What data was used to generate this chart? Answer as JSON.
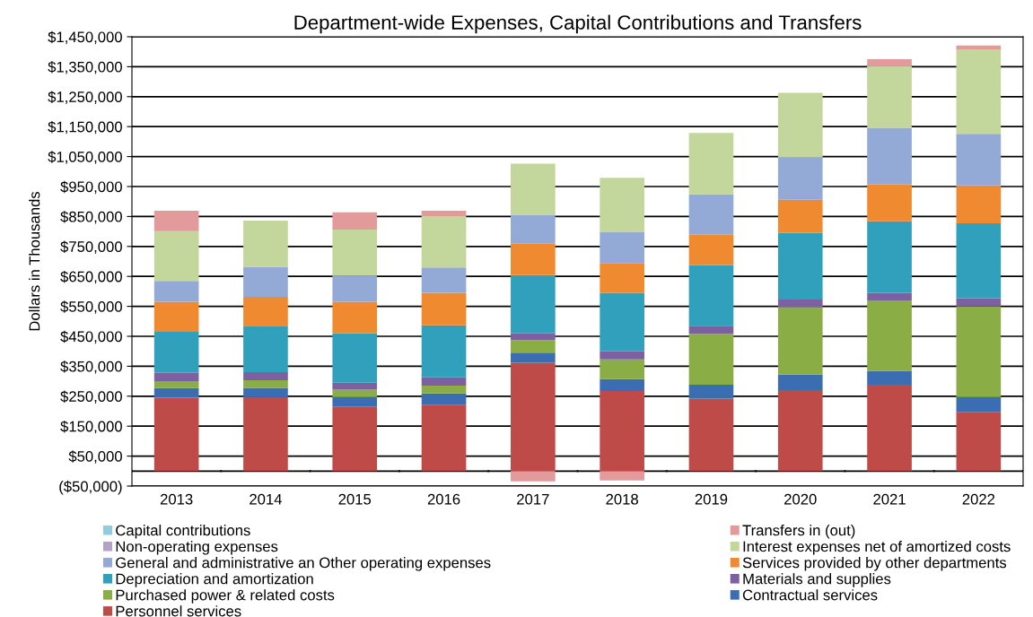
{
  "chart_data": {
    "type": "bar",
    "title": "Department-wide Expenses, Capital Contributions and Transfers",
    "ylabel": "Dollars in Thousands",
    "categories": [
      "2013",
      "2014",
      "2015",
      "2016",
      "2017",
      "2018",
      "2019",
      "2020",
      "2021",
      "2022"
    ],
    "stacked": true,
    "grid": "y",
    "legend": "bottom",
    "ylim": [
      -50000,
      1450000
    ],
    "yticks": [
      {
        "value": -50000,
        "label": "($50,000)"
      },
      {
        "value": 50000,
        "label": "$50,000"
      },
      {
        "value": 150000,
        "label": "$150,000"
      },
      {
        "value": 250000,
        "label": "$250,000"
      },
      {
        "value": 350000,
        "label": "$350,000"
      },
      {
        "value": 450000,
        "label": "$450,000"
      },
      {
        "value": 550000,
        "label": "$550,000"
      },
      {
        "value": 650000,
        "label": "$650,000"
      },
      {
        "value": 750000,
        "label": "$750,000"
      },
      {
        "value": 850000,
        "label": "$850,000"
      },
      {
        "value": 950000,
        "label": "$950,000"
      },
      {
        "value": 1050000,
        "label": "$1,050,000"
      },
      {
        "value": 1150000,
        "label": "$1,150,000"
      },
      {
        "value": 1250000,
        "label": "$1,250,000"
      },
      {
        "value": 1350000,
        "label": "$1,350,000"
      },
      {
        "value": 1450000,
        "label": "$1,450,000"
      }
    ],
    "ref_lines": [
      {
        "axis": "y",
        "value": 0,
        "color": "#000000"
      }
    ],
    "series": [
      {
        "name": "Personnel services",
        "color": "#be4b48",
        "values": [
          245000,
          247000,
          216000,
          222000,
          362000,
          267000,
          242000,
          270000,
          288000,
          196000
        ]
      },
      {
        "name": "Contractual services",
        "color": "#3b6db3",
        "values": [
          32000,
          31000,
          31000,
          37000,
          33000,
          40000,
          46000,
          52000,
          47000,
          51000
        ]
      },
      {
        "name": "Purchased power & related costs",
        "color": "#8aad45",
        "values": [
          23000,
          25000,
          25000,
          26000,
          42000,
          66000,
          170000,
          225000,
          235000,
          303000
        ]
      },
      {
        "name": "Materials and supplies",
        "color": "#7d60a0",
        "values": [
          28000,
          27000,
          23000,
          28000,
          23000,
          27000,
          27000,
          26000,
          25000,
          27000
        ]
      },
      {
        "name": "Depreciation and amortization",
        "color": "#31a0bd",
        "values": [
          137000,
          155000,
          165000,
          174000,
          194000,
          195000,
          202000,
          223000,
          239000,
          250000
        ]
      },
      {
        "name": "Services provided by other departments",
        "color": "#f08a30",
        "values": [
          100000,
          97000,
          105000,
          108000,
          105000,
          100000,
          102000,
          110000,
          123000,
          127000
        ]
      },
      {
        "name": "General and administrative an Other operating expenses",
        "color": "#93a9d6",
        "values": [
          70000,
          99000,
          88000,
          85000,
          97000,
          104000,
          135000,
          141000,
          189000,
          172000
        ]
      },
      {
        "name": "Interest expenses net of amortized costs",
        "color": "#c3d69b",
        "values": [
          166000,
          155000,
          153000,
          171000,
          170000,
          180000,
          205000,
          216000,
          207000,
          282000
        ]
      },
      {
        "name": "Non-operating expenses",
        "color": "#b3a2c7",
        "values": [
          0,
          0,
          0,
          0,
          0,
          0,
          0,
          0,
          0,
          0
        ]
      },
      {
        "name": "Transfers in (out)",
        "color": "#e39a9a",
        "values": [
          68000,
          0,
          58000,
          18000,
          -34000,
          -31000,
          0,
          0,
          22000,
          13000
        ]
      },
      {
        "name": "Capital contributions",
        "color": "#93cddd",
        "values": [
          0,
          0,
          0,
          0,
          0,
          0,
          0,
          0,
          0,
          0
        ]
      }
    ]
  }
}
